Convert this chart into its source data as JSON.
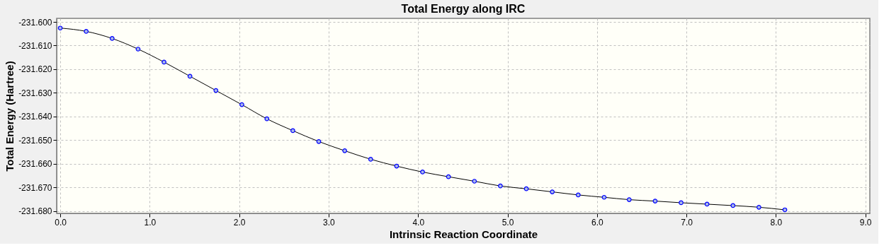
{
  "chart_data": {
    "type": "line",
    "title": "Total Energy along IRC",
    "xlabel": "Intrinsic Reaction Coordinate",
    "ylabel": "Total Energy (Hartree)",
    "x": [
      0.0,
      0.29,
      0.58,
      0.87,
      1.16,
      1.45,
      1.74,
      2.03,
      2.31,
      2.6,
      2.89,
      3.18,
      3.47,
      3.76,
      4.05,
      4.34,
      4.63,
      4.92,
      5.21,
      5.5,
      5.79,
      6.08,
      6.36,
      6.65,
      6.94,
      7.23,
      7.52,
      7.81,
      8.1
    ],
    "series": [
      {
        "color": "#000000",
        "values": [
          -231.6026,
          -231.604,
          -231.607,
          -231.6115,
          -231.617,
          -231.623,
          -231.629,
          -231.635,
          -231.641,
          -231.646,
          -231.6506,
          -231.6545,
          -231.6581,
          -231.661,
          -231.6635,
          -231.6655,
          -231.6674,
          -231.6694,
          -231.6706,
          -231.6719,
          -231.6732,
          -231.6742,
          -231.6752,
          -231.6758,
          -231.6765,
          -231.6771,
          -231.6777,
          -231.6784,
          -231.6795
        ]
      }
    ],
    "xlim": [
      -0.04,
      9.05
    ],
    "ylim": [
      -231.681,
      -231.5985
    ],
    "xticks": [
      {
        "value": 0,
        "label": "0.0"
      },
      {
        "value": 1,
        "label": "1.0"
      },
      {
        "value": 2,
        "label": "2.0"
      },
      {
        "value": 3,
        "label": "3.0"
      },
      {
        "value": 4,
        "label": "4.0"
      },
      {
        "value": 5,
        "label": "5.0"
      },
      {
        "value": 6,
        "label": "6.0"
      },
      {
        "value": 7,
        "label": "7.0"
      },
      {
        "value": 8,
        "label": "8.0"
      },
      {
        "value": 9,
        "label": "9.0"
      }
    ],
    "yticks": [
      {
        "value": -231.6,
        "label": "-231.600"
      },
      {
        "value": -231.61,
        "label": "-231.610"
      },
      {
        "value": -231.62,
        "label": "-231.620"
      },
      {
        "value": -231.63,
        "label": "-231.630"
      },
      {
        "value": -231.64,
        "label": "-231.640"
      },
      {
        "value": -231.65,
        "label": "-231.650"
      },
      {
        "value": -231.66,
        "label": "-231.660"
      },
      {
        "value": -231.67,
        "label": "-231.670"
      },
      {
        "value": -231.68,
        "label": "-231.680"
      }
    ],
    "grid": true,
    "marker": "circle",
    "line_style": "solid"
  }
}
